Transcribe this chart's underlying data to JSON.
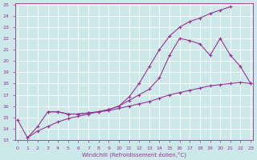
{
  "line1_x": [
    0,
    1,
    2,
    3,
    4,
    5,
    6,
    7,
    8,
    9,
    10,
    11,
    12,
    13,
    14,
    15,
    16,
    17,
    18,
    19,
    20,
    21
  ],
  "line1_y": [
    14.8,
    13.2,
    14.2,
    15.5,
    15.5,
    15.3,
    15.3,
    15.4,
    15.5,
    15.7,
    16.0,
    16.8,
    18.0,
    19.5,
    21.0,
    22.2,
    23.0,
    23.5,
    23.8,
    24.2,
    24.5,
    24.8
  ],
  "line2_x": [
    3,
    4,
    5,
    6,
    7,
    8,
    9,
    10,
    11,
    12,
    13,
    14,
    15,
    16,
    17,
    18,
    19,
    20,
    21,
    22,
    23
  ],
  "line2_y": [
    15.5,
    15.5,
    15.3,
    15.3,
    15.4,
    15.5,
    15.7,
    16.0,
    16.5,
    17.0,
    17.5,
    18.5,
    20.5,
    22.0,
    21.8,
    21.5,
    20.5,
    22.0,
    20.5,
    19.5,
    18.0
  ],
  "line3_x": [
    1,
    2,
    3,
    4,
    5,
    6,
    7,
    8,
    9,
    10,
    11,
    12,
    13,
    14,
    15,
    16,
    17,
    18,
    19,
    20,
    21,
    22,
    23
  ],
  "line3_y": [
    13.2,
    13.8,
    14.2,
    14.6,
    14.9,
    15.1,
    15.3,
    15.5,
    15.6,
    15.8,
    16.0,
    16.2,
    16.4,
    16.7,
    17.0,
    17.2,
    17.4,
    17.6,
    17.8,
    17.9,
    18.0,
    18.1,
    18.0
  ],
  "line_color": "#993399",
  "bg_color": "#cce8e8",
  "grid_color": "#ffffff",
  "ylabel_min": 13,
  "ylabel_max": 25,
  "xlabel_min": 0,
  "xlabel_max": 23,
  "xlabel": "Windchill (Refroidissement éolien,°C)",
  "marker": "+",
  "marker_size": 3,
  "linewidth": 0.8
}
